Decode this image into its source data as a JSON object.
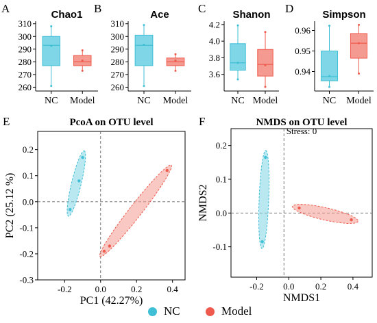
{
  "colors": {
    "nc": "#3fbfd6",
    "model": "#ef5a4e",
    "nc_fill": "#7fd6e6",
    "model_fill": "#f59a90"
  },
  "legend": [
    {
      "label": "NC",
      "color": "#3fbfd6"
    },
    {
      "label": "Model",
      "color": "#ef5a4e"
    }
  ],
  "chart_data": [
    {
      "type": "box",
      "panel_letter": "A",
      "title": "Chao1",
      "categories": [
        "NC",
        "Model"
      ],
      "ylim": [
        257,
        312
      ],
      "yticks": [
        260,
        270,
        280,
        290,
        300,
        310
      ],
      "boxes": [
        {
          "name": "NC",
          "min": 261,
          "q1": 277,
          "median": 293,
          "q3": 300,
          "max": 308,
          "mean": 292.5
        },
        {
          "name": "Model",
          "min": 273,
          "q1": 277,
          "median": 280,
          "q3": 285,
          "max": 289,
          "mean": 281
        }
      ]
    },
    {
      "type": "box",
      "panel_letter": "B",
      "title": "Ace",
      "categories": [
        "NC",
        "Model"
      ],
      "ylim": [
        257,
        312
      ],
      "yticks": [
        260,
        270,
        280,
        290,
        300,
        310
      ],
      "boxes": [
        {
          "name": "NC",
          "min": 261,
          "q1": 277,
          "median": 293,
          "q3": 301,
          "max": 309,
          "mean": 293.5
        },
        {
          "name": "Model",
          "min": 273,
          "q1": 277,
          "median": 280,
          "q3": 283,
          "max": 286,
          "mean": 281
        }
      ]
    },
    {
      "type": "box",
      "panel_letter": "C",
      "title": "Shanon",
      "categories": [
        "NC",
        "Model"
      ],
      "ylim": [
        3.4,
        4.24
      ],
      "yticks": [
        3.6,
        3.8,
        4.0,
        4.2
      ],
      "boxes": [
        {
          "name": "NC",
          "min": 3.54,
          "q1": 3.65,
          "median": 3.74,
          "q3": 3.97,
          "max": 4.19,
          "mean": 3.74
        },
        {
          "name": "Model",
          "min": 3.45,
          "q1": 3.58,
          "median": 3.72,
          "q3": 3.9,
          "max": 4.11,
          "mean": 3.71
        }
      ]
    },
    {
      "type": "box",
      "panel_letter": "D",
      "title": "Simpson",
      "categories": [
        "NC",
        "Model"
      ],
      "ylim": [
        0.9305,
        0.9645
      ],
      "yticks": [
        0.94,
        0.95,
        0.96
      ],
      "boxes": [
        {
          "name": "NC",
          "min": 0.9325,
          "q1": 0.9355,
          "median": 0.9375,
          "q3": 0.95,
          "max": 0.9623,
          "mean": 0.9378
        },
        {
          "name": "Model",
          "min": 0.939,
          "q1": 0.9465,
          "median": 0.9538,
          "q3": 0.9585,
          "max": 0.9627,
          "mean": 0.9538
        }
      ]
    },
    {
      "type": "scatter",
      "panel_letter": "E",
      "title": "PcoA on OTU level",
      "subtitle": "",
      "xlabel": "PC1 (42.27%)",
      "ylabel": "PC2 (25.12 %)",
      "xlim": [
        -0.35,
        0.47
      ],
      "ylim": [
        -0.3,
        0.27
      ],
      "xticks": [
        -0.2,
        0.0,
        0.2,
        0.4
      ],
      "yticks": [
        -0.3,
        -0.2,
        -0.1,
        0.0,
        0.1,
        0.2
      ],
      "refline_x": 0,
      "refline_y": 0,
      "series": [
        {
          "name": "NC",
          "points": [
            [
              -0.17,
              -0.03
            ],
            [
              -0.12,
              0.08
            ],
            [
              -0.1,
              0.17
            ]
          ]
        },
        {
          "name": "Model",
          "points": [
            [
              0.02,
              -0.19
            ],
            [
              0.05,
              -0.17
            ],
            [
              0.37,
              0.12
            ]
          ]
        }
      ]
    },
    {
      "type": "scatter",
      "panel_letter": "F",
      "title": "NMDS on OTU level",
      "subtitle": "Stress: 0",
      "xlabel": "NMDS1",
      "ylabel": "NMDS2",
      "xlim": [
        -0.36,
        0.52
      ],
      "ylim": [
        -0.19,
        0.25
      ],
      "xticks": [
        -0.2,
        0.0,
        0.2,
        0.4
      ],
      "yticks": [
        -0.1,
        0.0,
        0.1,
        0.2
      ],
      "refline_x": -0.03,
      "refline_y": 0,
      "series": [
        {
          "name": "NC",
          "points": [
            [
              -0.165,
              -0.085
            ],
            [
              -0.145,
              0.165
            ]
          ]
        },
        {
          "name": "Model",
          "points": [
            [
              0.065,
              0.015
            ],
            [
              0.39,
              -0.02
            ]
          ]
        }
      ]
    }
  ]
}
